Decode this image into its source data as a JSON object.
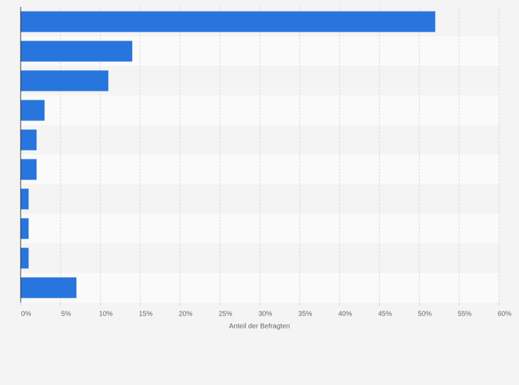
{
  "chart_data": {
    "type": "bar",
    "orientation": "horizontal",
    "x_label": "Anteil der Befragten",
    "categories": [
      null,
      null,
      null,
      null,
      null,
      null,
      null,
      null,
      null,
      null
    ],
    "values": [
      52,
      14,
      11,
      3,
      2,
      2,
      1,
      1,
      1,
      7
    ],
    "color": "#2876dd",
    "xlim": [
      0,
      60
    ],
    "xticks": [
      {
        "value": 0,
        "label": "0%"
      },
      {
        "value": 5,
        "label": "5%"
      },
      {
        "value": 10,
        "label": "10%"
      },
      {
        "value": 15,
        "label": "15%"
      },
      {
        "value": 20,
        "label": "20%"
      },
      {
        "value": 25,
        "label": "25%"
      },
      {
        "value": 30,
        "label": "30%"
      },
      {
        "value": 35,
        "label": "35%"
      },
      {
        "value": 40,
        "label": "40%"
      },
      {
        "value": 45,
        "label": "45%"
      },
      {
        "value": 50,
        "label": "50%"
      },
      {
        "value": 55,
        "label": "55%"
      },
      {
        "value": 60,
        "label": "60%"
      }
    ],
    "grid": true
  }
}
